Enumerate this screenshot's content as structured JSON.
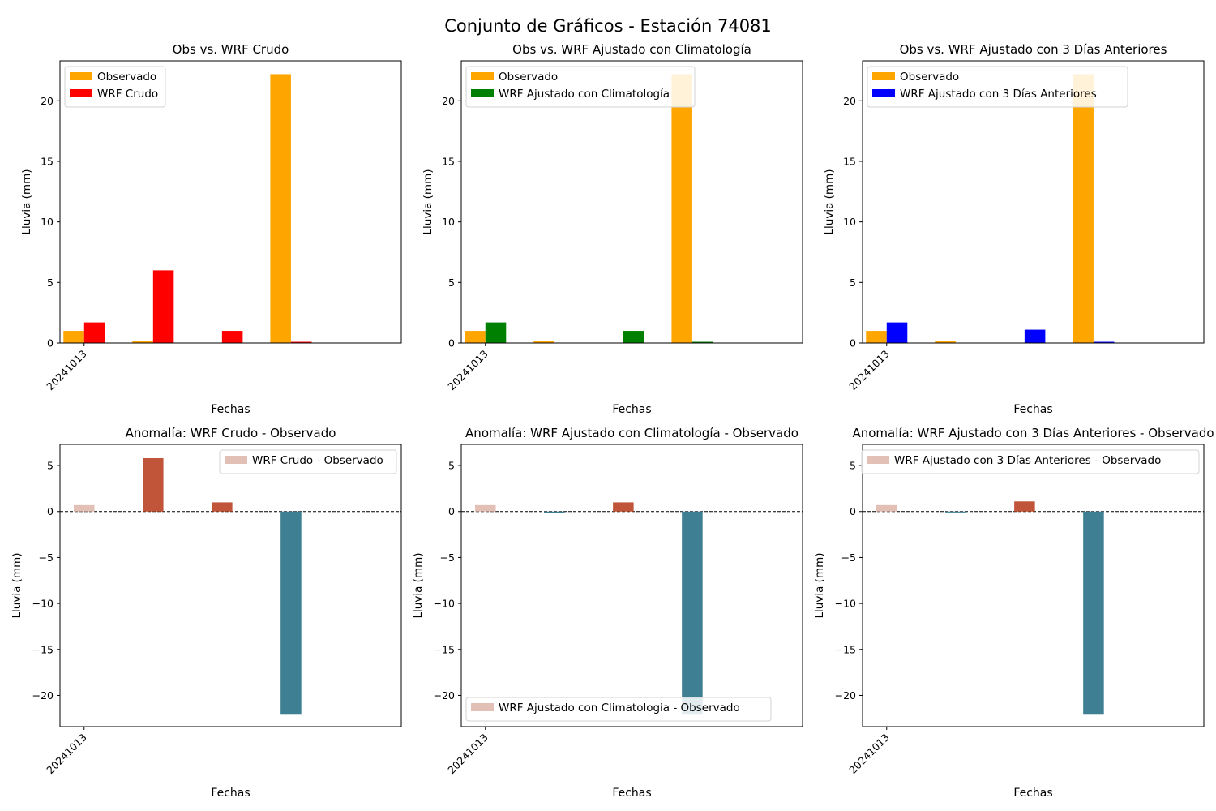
{
  "figure": {
    "title": "Conjunto de Gráficos - Estación 74081"
  },
  "chart_data": [
    {
      "type": "bar",
      "title": "Obs vs. WRF Crudo",
      "xlabel": "Fechas",
      "ylabel": "Lluvia (mm)",
      "x_ticks": [
        "20241013"
      ],
      "ylim": [
        0,
        23.3
      ],
      "yticks": [
        0,
        5,
        10,
        15,
        20
      ],
      "grid": false,
      "legend_position": "upper-left",
      "series": [
        {
          "name": "Observado",
          "color": "#FFA500",
          "values": [
            1.0,
            0.2,
            0.0,
            22.2,
            0.0
          ]
        },
        {
          "name": "WRF Crudo",
          "color": "#FF0000",
          "values": [
            1.7,
            6.0,
            1.0,
            0.1,
            0.0
          ]
        }
      ]
    },
    {
      "type": "bar",
      "title": "Obs vs. WRF Ajustado con Climatología",
      "xlabel": "Fechas",
      "ylabel": "Lluvia (mm)",
      "x_ticks": [
        "20241013"
      ],
      "ylim": [
        0,
        23.3
      ],
      "yticks": [
        0,
        5,
        10,
        15,
        20
      ],
      "grid": false,
      "legend_position": "upper-left",
      "series": [
        {
          "name": "Observado",
          "color": "#FFA500",
          "values": [
            1.0,
            0.2,
            0.0,
            22.2,
            0.0
          ]
        },
        {
          "name": "WRF Ajustado con Climatología",
          "color": "#008000",
          "values": [
            1.7,
            0.0,
            1.0,
            0.1,
            0.0
          ]
        }
      ]
    },
    {
      "type": "bar",
      "title": "Obs vs. WRF Ajustado con 3 Días Anteriores",
      "xlabel": "Fechas",
      "ylabel": "Lluvia (mm)",
      "x_ticks": [
        "20241013"
      ],
      "ylim": [
        0,
        23.3
      ],
      "yticks": [
        0,
        5,
        10,
        15,
        20
      ],
      "grid": false,
      "legend_position": "upper-left",
      "series": [
        {
          "name": "Observado",
          "color": "#FFA500",
          "values": [
            1.0,
            0.2,
            0.0,
            22.2,
            0.0
          ]
        },
        {
          "name": "WRF Ajustado con 3 Días Anteriores",
          "color": "#0000FF",
          "values": [
            1.7,
            0.0,
            1.1,
            0.1,
            0.0
          ]
        }
      ]
    },
    {
      "type": "bar",
      "title": "Anomalía: WRF Crudo - Observado",
      "xlabel": "Fechas",
      "ylabel": "Lluvia (mm)",
      "x_ticks": [
        "20241013"
      ],
      "ylim": [
        -23.4,
        7.3
      ],
      "yticks": [
        -20,
        -15,
        -10,
        -5,
        0,
        5
      ],
      "grid": false,
      "legend_position": "upper-right",
      "series": [
        {
          "name": "WRF Crudo - Observado",
          "values": [
            0.7,
            5.8,
            1.0,
            -22.1
          ]
        }
      ]
    },
    {
      "type": "bar",
      "title": "Anomalía: WRF Ajustado con Climatología - Observado",
      "xlabel": "Fechas",
      "ylabel": "Lluvia (mm)",
      "x_ticks": [
        "20241013"
      ],
      "ylim": [
        -23.4,
        7.3
      ],
      "yticks": [
        -20,
        -15,
        -10,
        -5,
        0,
        5
      ],
      "grid": false,
      "legend_position": "lower-left",
      "series": [
        {
          "name": "WRF Ajustado con Climatologia - Observado",
          "values": [
            0.7,
            -0.2,
            1.0,
            -22.1
          ]
        }
      ]
    },
    {
      "type": "bar",
      "title": "Anomalía: WRF Ajustado con 3 Días Anteriores - Observado",
      "xlabel": "Fechas",
      "ylabel": "Lluvia (mm)",
      "x_ticks": [
        "20241013"
      ],
      "ylim": [
        -23.4,
        7.3
      ],
      "yticks": [
        -20,
        -15,
        -10,
        -5,
        0,
        5
      ],
      "grid": false,
      "legend_position": "upper-right",
      "series": [
        {
          "name": "WRF Ajustado con 3 Días Anteriores - Observado",
          "values": [
            0.7,
            -0.1,
            1.1,
            -22.1
          ]
        }
      ]
    }
  ],
  "colors": {
    "anomaly_small": "#E2C0B6",
    "anomaly_positive": "#C1553A",
    "anomaly_negative": "#3E7F93",
    "axis": "#000000"
  }
}
